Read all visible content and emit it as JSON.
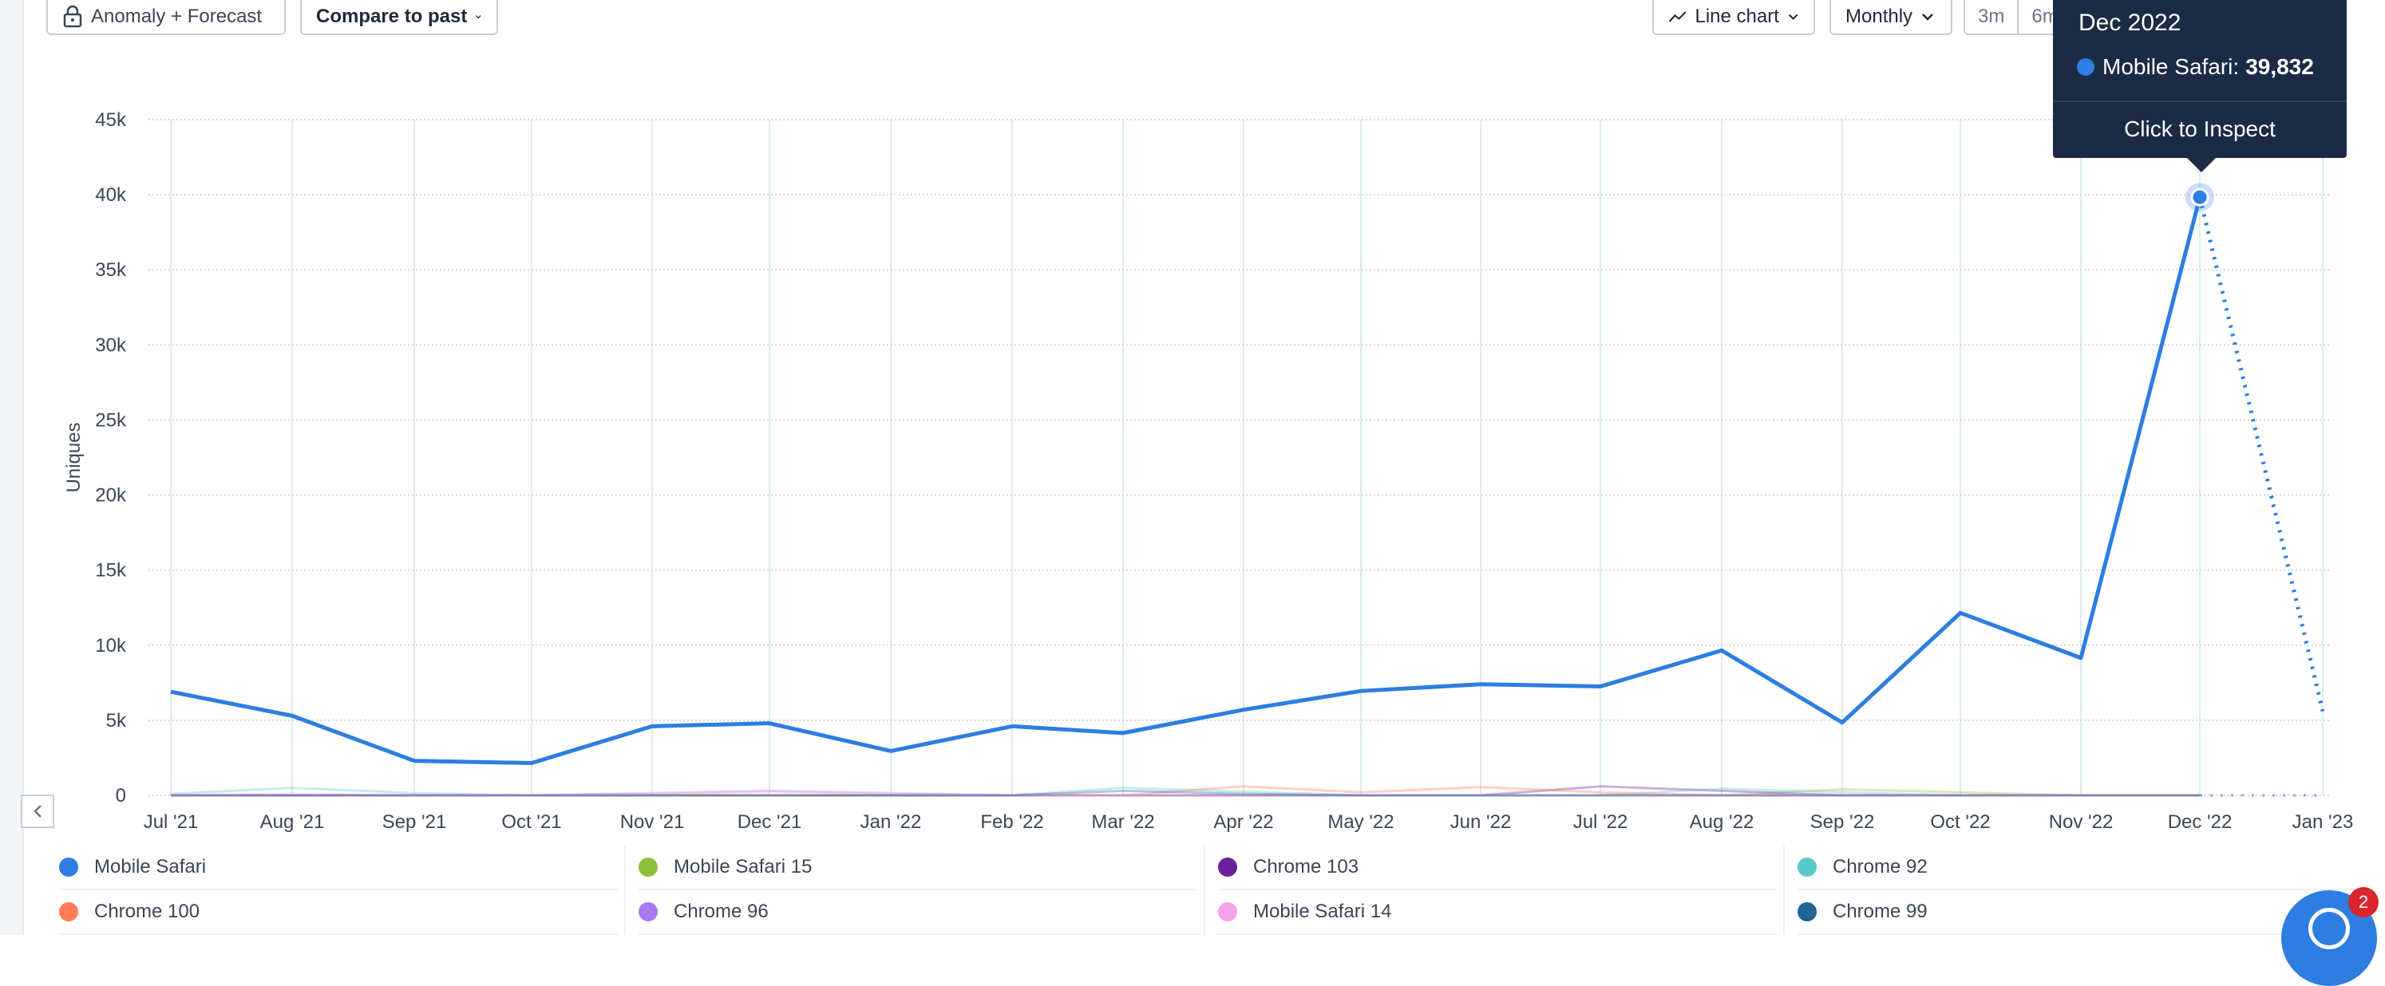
{
  "toolbar": {
    "anomaly_label": "Anomaly + Forecast",
    "compare_label": "Compare to past",
    "chart_type_label": "Line chart",
    "interval_label": "Monthly",
    "ranges": [
      "3m",
      "6m"
    ]
  },
  "tooltip": {
    "date": "Dec 2022",
    "series": "Mobile Safari:",
    "value": "39,832",
    "cta": "Click to Inspect"
  },
  "colors": {
    "primary": "#2d7de2",
    "grid": "#c9cdd2",
    "tooltip_bg": "#1c2b45"
  },
  "legend": [
    {
      "name": "Mobile Safari",
      "color": "#2d7de2"
    },
    {
      "name": "Mobile Safari 15",
      "color": "#8cbf3a"
    },
    {
      "name": "Chrome 103",
      "color": "#6b1f9c"
    },
    {
      "name": "Chrome 92",
      "color": "#5bc8cc"
    },
    {
      "name": "Chrome 100",
      "color": "#ff7b5a"
    },
    {
      "name": "Chrome 96",
      "color": "#a979f0"
    },
    {
      "name": "Mobile Safari 14",
      "color": "#f4a3e8"
    },
    {
      "name": "Chrome 99",
      "color": "#1c6596"
    }
  ],
  "chart_data": {
    "type": "line",
    "ylabel": "Uniques",
    "xlabel": "",
    "ylim": [
      0,
      45000
    ],
    "yticks": [
      0,
      5000,
      10000,
      15000,
      20000,
      25000,
      30000,
      35000,
      40000,
      45000
    ],
    "ytick_labels": [
      "0",
      "5k",
      "10k",
      "15k",
      "20k",
      "25k",
      "30k",
      "35k",
      "40k",
      "45k"
    ],
    "categories": [
      "Jul '21",
      "Aug '21",
      "Sep '21",
      "Oct '21",
      "Nov '21",
      "Dec '21",
      "Jan '22",
      "Feb '22",
      "Mar '22",
      "Apr '22",
      "May '22",
      "Jun '22",
      "Jul '22",
      "Aug '22",
      "Sep '22",
      "Oct '22",
      "Nov '22",
      "Dec '22",
      "Jan '23"
    ],
    "series": [
      {
        "name": "Mobile Safari",
        "values": [
          6900,
          5300,
          2300,
          2150,
          4600,
          4800,
          2950,
          4600,
          4150,
          5700,
          6950,
          7400,
          7250,
          9650,
          4850,
          12150,
          9150,
          39832,
          null
        ],
        "forecast": [
          null,
          null,
          null,
          null,
          null,
          null,
          null,
          null,
          null,
          null,
          null,
          null,
          null,
          null,
          null,
          null,
          null,
          39832,
          5600
        ]
      },
      {
        "name": "Mobile Safari 15",
        "values": [
          0,
          0,
          0,
          0,
          0,
          0,
          0,
          0,
          0,
          0,
          0,
          0,
          0,
          0,
          400,
          200,
          0,
          0,
          null
        ]
      },
      {
        "name": "Chrome 103",
        "values": [
          0,
          0,
          0,
          0,
          0,
          0,
          0,
          0,
          0,
          0,
          0,
          0,
          600,
          300,
          0,
          0,
          0,
          0,
          null
        ]
      },
      {
        "name": "Chrome 92",
        "values": [
          100,
          500,
          150,
          0,
          0,
          0,
          0,
          0,
          500,
          250,
          0,
          0,
          0,
          450,
          200,
          0,
          0,
          0,
          null
        ]
      },
      {
        "name": "Chrome 100",
        "values": [
          0,
          0,
          0,
          0,
          0,
          0,
          0,
          0,
          0,
          600,
          200,
          550,
          200,
          0,
          0,
          0,
          0,
          0,
          null
        ]
      },
      {
        "name": "Chrome 96",
        "values": [
          0,
          0,
          0,
          0,
          150,
          300,
          150,
          0,
          0,
          0,
          0,
          0,
          0,
          0,
          0,
          0,
          0,
          0,
          null
        ]
      },
      {
        "name": "Mobile Safari 14",
        "values": [
          0,
          100,
          0,
          0,
          100,
          250,
          100,
          0,
          0,
          0,
          0,
          0,
          0,
          0,
          0,
          0,
          0,
          0,
          null
        ]
      },
      {
        "name": "Chrome 99",
        "values": [
          0,
          0,
          0,
          0,
          0,
          0,
          0,
          0,
          300,
          100,
          0,
          0,
          0,
          0,
          0,
          0,
          0,
          0,
          null
        ]
      }
    ],
    "highlight": {
      "category": "Dec '22",
      "series": "Mobile Safari",
      "value": 39832
    },
    "grid": true
  }
}
